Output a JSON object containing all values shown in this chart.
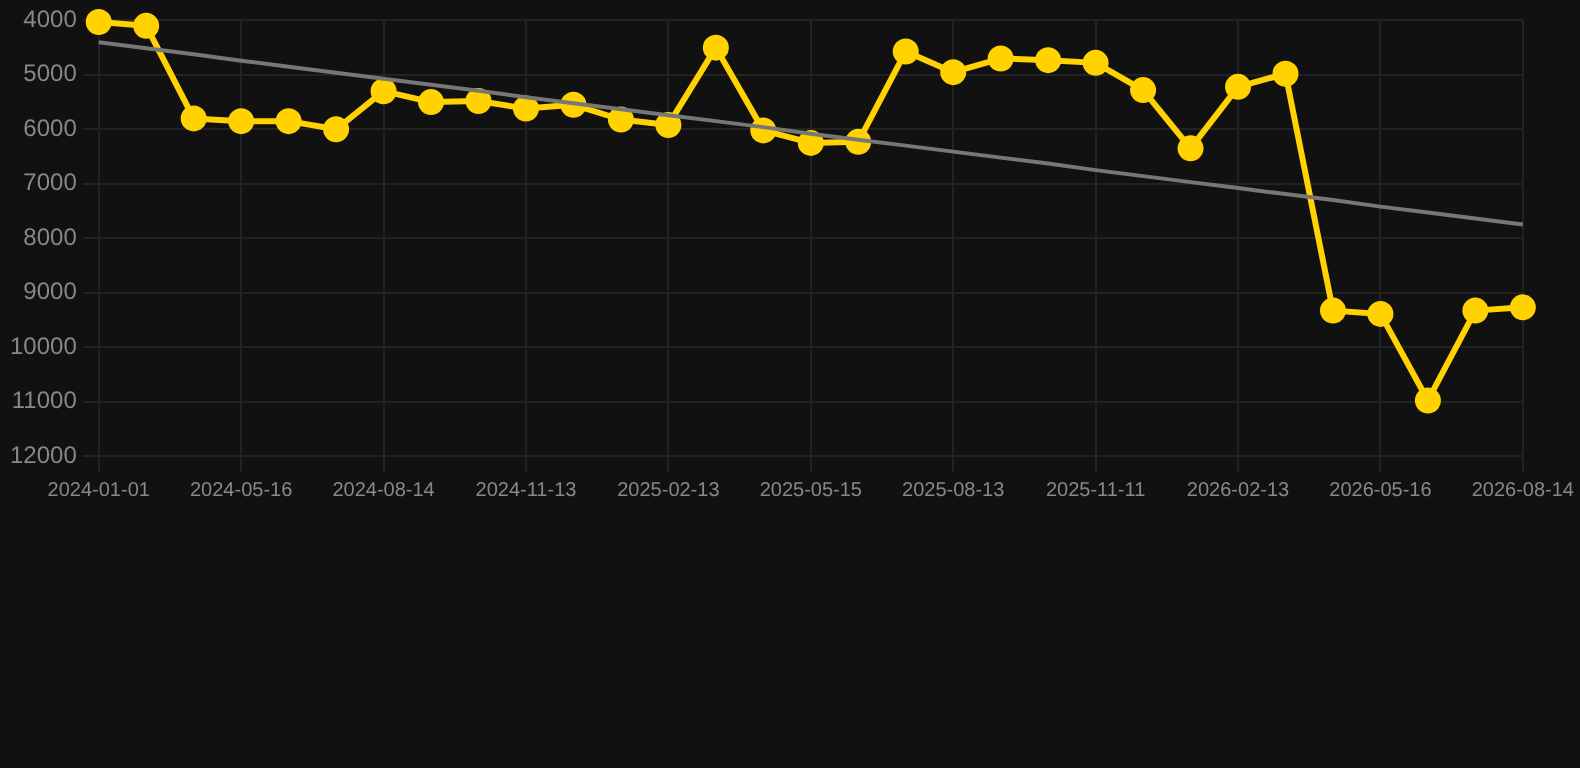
{
  "chart_data": {
    "type": "line",
    "categories": [
      "2024-01-01",
      null,
      null,
      "2024-05-16",
      null,
      null,
      "2024-08-14",
      null,
      null,
      "2024-11-13",
      null,
      null,
      "2025-02-13",
      null,
      null,
      "2025-05-15",
      null,
      null,
      "2025-08-13",
      null,
      null,
      "2025-11-11",
      null,
      null,
      "2026-02-13",
      null,
      null,
      "2026-05-16",
      null,
      null,
      "2026-08-14"
    ],
    "series": [
      {
        "color": "#ffd200",
        "marker": "circle",
        "values": [
          4030,
          4100,
          5800,
          5850,
          5850,
          6000,
          5300,
          5500,
          5480,
          5620,
          5550,
          5820,
          5920,
          4500,
          6020,
          6250,
          6230,
          4570,
          4950,
          4700,
          4730,
          4780,
          5280,
          6350,
          5220,
          4980,
          9330,
          9390,
          10980,
          9330,
          9270
        ]
      },
      {
        "type": "line",
        "color": "#777777",
        "marker": "none",
        "values": [
          4400,
          4510,
          4620,
          4740,
          4850,
          4960,
          5070,
          5180,
          5290,
          5410,
          5520,
          5630,
          5740,
          5850,
          5960,
          6080,
          6190,
          6300,
          6410,
          6520,
          6630,
          6750,
          6860,
          6970,
          7080,
          7190,
          7300,
          7420,
          7530,
          7640,
          7750
        ]
      }
    ],
    "ylim": [
      12000,
      4000
    ],
    "yticks": [
      4000,
      5000,
      6000,
      7000,
      8000,
      9000,
      10000,
      11000,
      12000
    ],
    "grid": true,
    "legend": false
  }
}
